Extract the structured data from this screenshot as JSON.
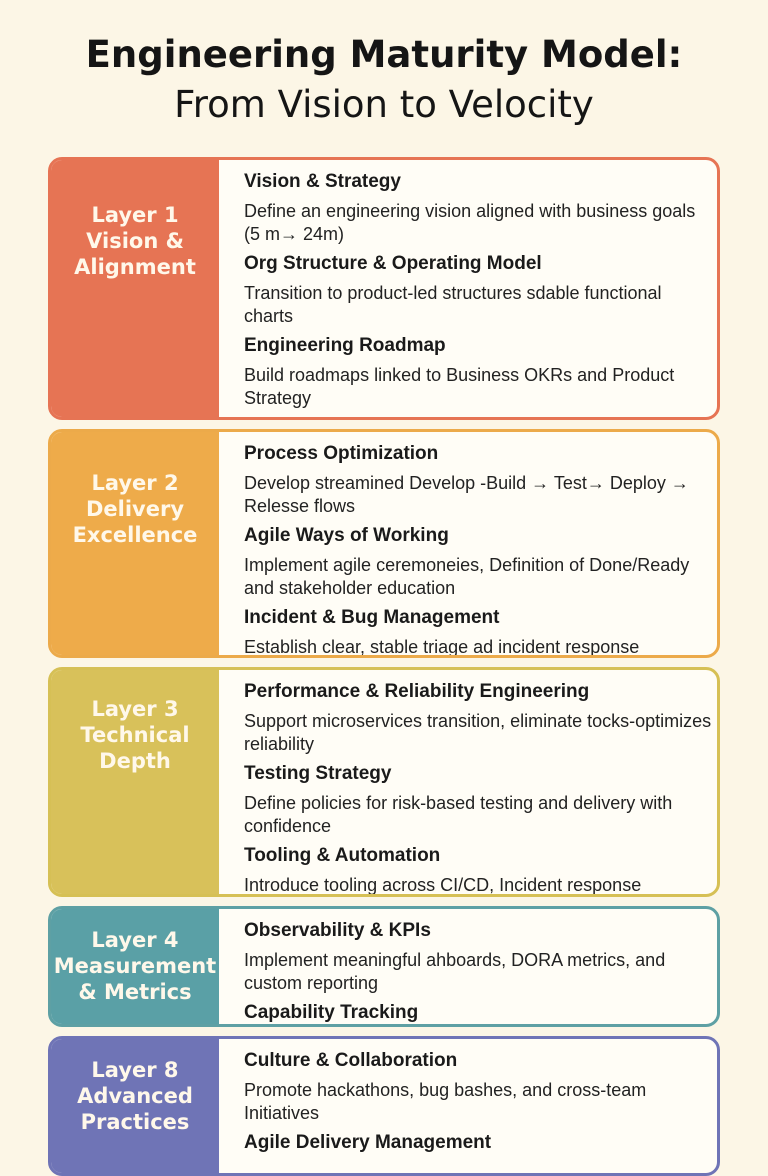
{
  "title": {
    "line1": "Engineering Maturity Model:",
    "line2": "From Vision to Velocity"
  },
  "layers": [
    {
      "label": "Layer 1\nVision &\nAlignment",
      "color": "#e67454",
      "items": [
        {
          "heading": "Vision & Strategy",
          "description": "Define an engineering vision aligned with business goals (5 m→ 24m)"
        },
        {
          "heading": "Org Structure & Operating Model",
          "description": "Transition to product-led structures sdable functional charts"
        },
        {
          "heading": "Engineering Roadmap",
          "description": "Build roadmaps linked to Business OKRs and Product Strategy"
        }
      ]
    },
    {
      "label": "Layer 2\nDelivery\nExcellence",
      "color": "#eeab4a",
      "items": [
        {
          "heading": "Process Optimization",
          "description": "Develop streamined Develop -Build → Test→ Deploy → Relesse flows"
        },
        {
          "heading": "Agile Ways of Working",
          "description": "Implement agile ceremoneies, Definition of Done/Ready and stakeholder education"
        },
        {
          "heading": "Incident & Bug Management",
          "description": "Establish clear, stable triage ad incident response"
        }
      ]
    },
    {
      "label": "Layer 3\nTechnical\nDepth",
      "color": "#d8c15a",
      "items": [
        {
          "heading": "Performance & Reliability Engineering",
          "description": "Support microservices transition, eliminate tocks-optimizes reliability"
        },
        {
          "heading": "Testing Strategy",
          "description": "Define policies for risk-based testing and delivery with confidence"
        },
        {
          "heading": "Tooling & Automation",
          "description": "Introduce tooling across CI/CD, Incident response"
        }
      ]
    },
    {
      "label": "Layer 4\nMeasurement\n& Metrics",
      "color": "#5aa0a6",
      "items": [
        {
          "heading": "Observability & KPIs",
          "description": "Implement meaningful ahboards, DORA metrics, and custom reporting"
        },
        {
          "heading": "Capability Tracking",
          "description": ""
        }
      ]
    },
    {
      "label": "Layer 8\nAdvanced\nPractices",
      "color": "#6f74b6",
      "items": [
        {
          "heading": "Culture & Collaboration",
          "description": "Promote hackathons, bug bashes, and cross-team Initiatives"
        },
        {
          "heading": "Agile Delivery Management",
          "description": ""
        }
      ]
    }
  ]
}
